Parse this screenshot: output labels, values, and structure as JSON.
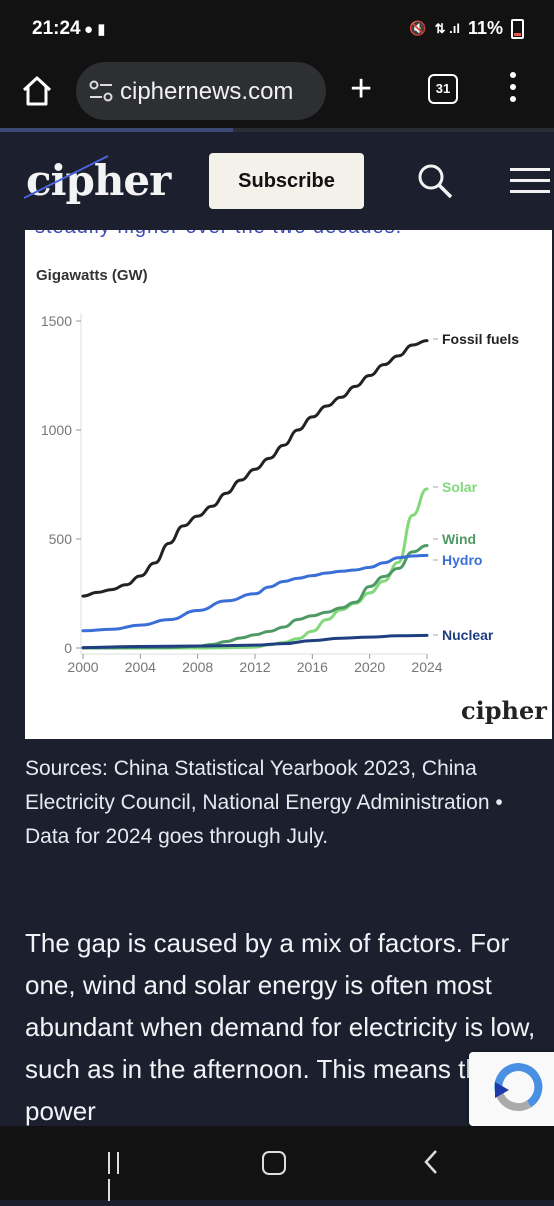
{
  "status_bar": {
    "time": "21:24",
    "battery": "11%"
  },
  "browser": {
    "url": "ciphernews.com",
    "url_prefix_hidden": "c",
    "tab_count": "31",
    "page_scroll_progress": 0.42
  },
  "site": {
    "logo": "cipher",
    "subscribe_label": "Subscribe"
  },
  "article": {
    "cut_off_text": "steadily higher over the two decades.",
    "caption": "Sources: China Statistical Yearbook 2023, China Electricity Council, National Energy Administration • Data for 2024 goes through July.",
    "body": "The gap is caused by a mix of factors. For one, wind and solar energy is often most abundant when demand for electricity is low, such as in the afternoon. This means the power"
  },
  "chart_data": {
    "type": "line",
    "ylabel": "Gigawatts (GW)",
    "xlabel": "",
    "xlim": [
      2000,
      2024
    ],
    "ylim": [
      0,
      1500
    ],
    "xticks": [
      "2000",
      "2004",
      "2008",
      "2012",
      "2016",
      "2020",
      "2024"
    ],
    "yticks": [
      "0",
      "500",
      "1000",
      "1500"
    ],
    "grid": false,
    "legend_placement": "right-end labels",
    "logo": "cipher",
    "series": [
      {
        "name": "Fossil fuels",
        "color": "#222222",
        "x": [
          2000,
          2001,
          2002,
          2003,
          2004,
          2005,
          2006,
          2007,
          2008,
          2009,
          2010,
          2011,
          2012,
          2013,
          2014,
          2015,
          2016,
          2017,
          2018,
          2019,
          2020,
          2021,
          2022,
          2023,
          2024
        ],
        "y": [
          238,
          255,
          268,
          290,
          330,
          390,
          480,
          560,
          605,
          650,
          710,
          770,
          820,
          870,
          930,
          1000,
          1060,
          1110,
          1150,
          1200,
          1250,
          1300,
          1340,
          1390,
          1410
        ]
      },
      {
        "name": "Solar",
        "color": "#82d97a",
        "x": [
          2000,
          2004,
          2008,
          2010,
          2011,
          2012,
          2013,
          2014,
          2015,
          2016,
          2017,
          2018,
          2019,
          2020,
          2021,
          2022,
          2023,
          2024
        ],
        "y": [
          0,
          0,
          0,
          1,
          3,
          4,
          15,
          25,
          43,
          77,
          130,
          175,
          205,
          253,
          307,
          393,
          609,
          730
        ]
      },
      {
        "name": "Wind",
        "color": "#4f9a64",
        "x": [
          2000,
          2004,
          2006,
          2008,
          2009,
          2010,
          2011,
          2012,
          2013,
          2014,
          2015,
          2016,
          2017,
          2018,
          2019,
          2020,
          2021,
          2022,
          2023,
          2024
        ],
        "y": [
          0,
          1,
          2,
          8,
          16,
          30,
          46,
          61,
          76,
          96,
          131,
          148,
          164,
          184,
          210,
          282,
          328,
          365,
          441,
          470
        ]
      },
      {
        "name": "Hydro",
        "color": "#3b6fd8",
        "x": [
          2000,
          2002,
          2004,
          2006,
          2008,
          2010,
          2012,
          2013,
          2014,
          2015,
          2016,
          2017,
          2018,
          2019,
          2020,
          2021,
          2022,
          2023,
          2024
        ],
        "y": [
          79,
          86,
          105,
          130,
          172,
          216,
          249,
          280,
          305,
          320,
          332,
          344,
          352,
          358,
          370,
          391,
          414,
          422,
          425
        ]
      },
      {
        "name": "Nuclear",
        "color": "#1f3f80",
        "x": [
          2000,
          2004,
          2008,
          2010,
          2012,
          2014,
          2016,
          2018,
          2020,
          2022,
          2024
        ],
        "y": [
          2,
          7,
          9,
          11,
          13,
          20,
          34,
          45,
          50,
          56,
          58
        ]
      }
    ]
  }
}
